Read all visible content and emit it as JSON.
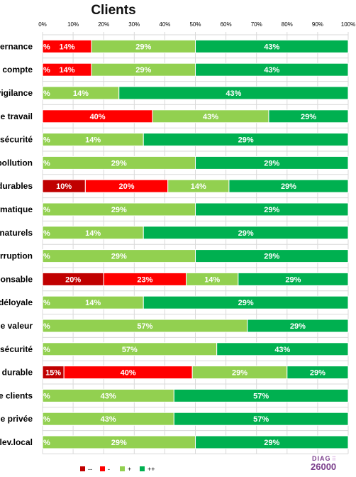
{
  "chart_data": {
    "type": "bar",
    "orientation": "horizontal",
    "stacked": true,
    "title": "Clients",
    "xlim": [
      0,
      100
    ],
    "x_ticks": [
      "0%",
      "10%",
      "20%",
      "30%",
      "40%",
      "50%",
      "60%",
      "70%",
      "80%",
      "90%",
      "100%"
    ],
    "grid": true,
    "legend_position": "bottom",
    "categories": [
      "ernance",
      "compte",
      "vigilance",
      "e travail",
      "sécurité",
      "pollution",
      "durables",
      "matique",
      "naturels",
      "rruption",
      "ponsable",
      "déloyale",
      "e valeur",
      "sécurité",
      "durable",
      "e clients",
      "e privée",
      "lev.local"
    ],
    "series": [
      {
        "name": "--",
        "color": "#c00000",
        "values": [
          0,
          0,
          0,
          0,
          0,
          0,
          14,
          0,
          0,
          0,
          20,
          0,
          0,
          0,
          7,
          0,
          0,
          0
        ],
        "labels": [
          "",
          "",
          "",
          "",
          "",
          "",
          "10%",
          "",
          "",
          "",
          "20%",
          "",
          "",
          "",
          "15%",
          "",
          "",
          ""
        ]
      },
      {
        "name": "-",
        "color": "#ff0000",
        "values": [
          16,
          16,
          0,
          36,
          0,
          0,
          27,
          0,
          0,
          0,
          27,
          0,
          0,
          0,
          42,
          0,
          0,
          0
        ],
        "labels": [
          "14%",
          "14%",
          "",
          "40%",
          "",
          "",
          "20%",
          "",
          "",
          "",
          "23%",
          "",
          "",
          "",
          "40%",
          "",
          "",
          ""
        ],
        "cut_labels": [
          "%",
          "%",
          "",
          "",
          "",
          "",
          "",
          "",
          "",
          "",
          "",
          "",
          "",
          "",
          "",
          "",
          "",
          ""
        ]
      },
      {
        "name": "+",
        "color": "#92d050",
        "values": [
          34,
          34,
          25,
          38,
          33,
          50,
          20,
          50,
          33,
          50,
          17,
          33,
          67,
          57,
          31,
          43,
          43,
          50
        ],
        "labels": [
          "29%",
          "29%",
          "14%",
          "43%",
          "14%",
          "29%",
          "14%",
          "29%",
          "14%",
          "29%",
          "14%",
          "14%",
          "57%",
          "57%",
          "29%",
          "43%",
          "43%",
          "29%"
        ],
        "cut_labels": [
          "",
          "",
          "%",
          "",
          "%",
          "%",
          "",
          "%",
          "%",
          "%",
          "",
          "%",
          "%",
          "%",
          "",
          "%",
          "%",
          "%"
        ]
      },
      {
        "name": "++",
        "color": "#00b050",
        "values": [
          50,
          50,
          75,
          26,
          67,
          50,
          39,
          50,
          67,
          50,
          36,
          67,
          33,
          43,
          20,
          57,
          57,
          50
        ],
        "labels": [
          "43%",
          "43%",
          "43%",
          "29%",
          "29%",
          "29%",
          "29%",
          "29%",
          "29%",
          "29%",
          "29%",
          "29%",
          "29%",
          "43%",
          "29%",
          "57%",
          "57%",
          "29%"
        ]
      }
    ]
  },
  "logo": {
    "top": "DIAG",
    "bottom": "26000"
  }
}
